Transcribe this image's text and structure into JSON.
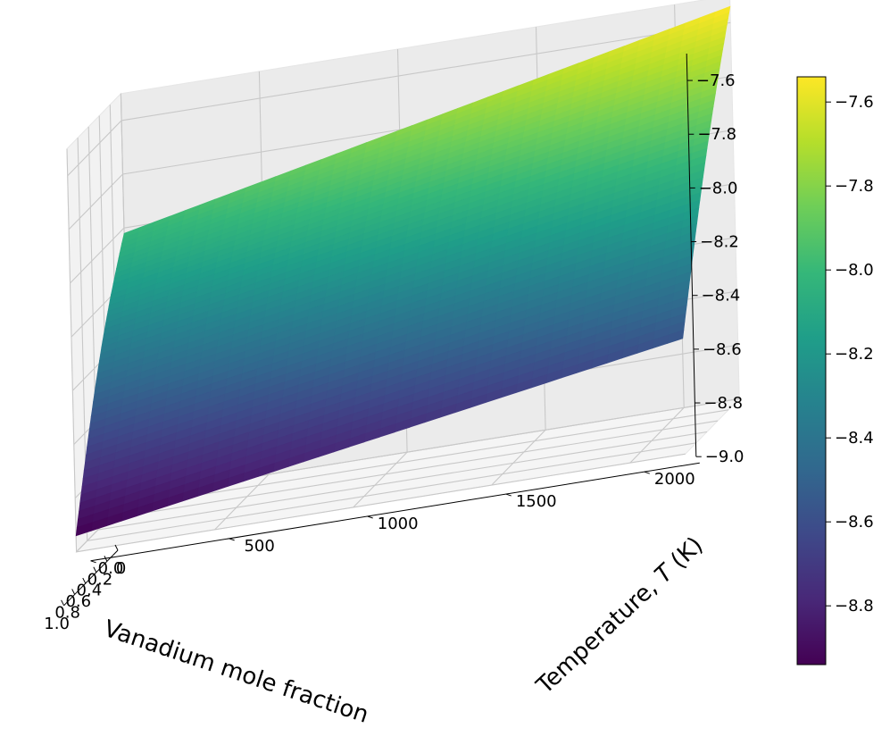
{
  "chart_data": {
    "type": "surface3d",
    "x_label": "Vanadium mole fraction",
    "y_label": "Temperature, T (K)",
    "y_label_parts": [
      "Temperature, ",
      "T",
      " (K)"
    ],
    "z_label": "",
    "x_ticks": [
      "0.0",
      "0.2",
      "0.4",
      "0.6",
      "0.8",
      "1.0"
    ],
    "y_ticks": [
      "0",
      "500",
      "1000",
      "1500",
      "2000"
    ],
    "z_ticks": [
      "−9.0",
      "−8.8",
      "−8.6",
      "−8.4",
      "−8.2",
      "−8.0",
      "−7.8",
      "−7.6"
    ],
    "colorbar_ticks": [
      "−8.8",
      "−8.6",
      "−8.4",
      "−8.2",
      "−8.0",
      "−7.8",
      "−7.6"
    ],
    "colormap": "viridis",
    "colormap_stops": [
      "#440154",
      "#482878",
      "#3e4989",
      "#31688e",
      "#26828e",
      "#1f9e89",
      "#35b779",
      "#6ece58",
      "#b5de2b",
      "#fde725"
    ],
    "x_range": [
      0.0,
      1.0
    ],
    "y_range": [
      0,
      2200
    ],
    "z_range": [
      -9.0,
      -7.5
    ],
    "colorbar_range": [
      -8.94,
      -7.54
    ],
    "surface_corners": [
      {
        "x": 0.0,
        "T": 0,
        "z": -8.02
      },
      {
        "x": 0.0,
        "T": 2200,
        "z": -7.54
      },
      {
        "x": 1.0,
        "T": 2200,
        "z": -8.57
      },
      {
        "x": 1.0,
        "T": 0,
        "z": -8.94
      }
    ],
    "grid": true
  }
}
